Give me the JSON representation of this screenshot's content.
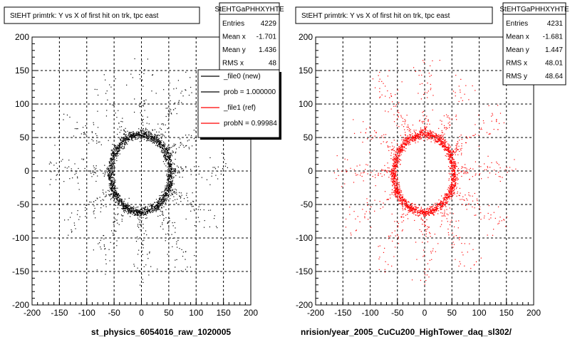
{
  "chart_data": [
    {
      "type": "scatter",
      "title": "StEHT primtrk: Y vs X of first hit on trk, tpc east",
      "xlim": [
        -200,
        200
      ],
      "ylim": [
        -200,
        200
      ],
      "x_ticks": [
        -200,
        -150,
        -100,
        -50,
        0,
        50,
        100,
        150,
        200
      ],
      "y_ticks": [
        -200,
        -150,
        -100,
        -50,
        0,
        50,
        100,
        150,
        200
      ],
      "grid": true,
      "point_color": "#000000",
      "stats": {
        "header": "StEHTGaPHHXYHTE",
        "rows": [
          {
            "label": "Entries",
            "value": "4229"
          },
          {
            "label": "Mean x",
            "value": "-1.701"
          },
          {
            "label": "Mean y",
            "value": "1.436"
          },
          {
            "label": "RMS x",
            "value": "48"
          }
        ]
      },
      "legend": {
        "placement": "top-right",
        "entries": [
          {
            "label": "_file0 (new)",
            "color": "#000000"
          },
          {
            "label": "prob = 1.000000",
            "color": "#000000"
          },
          {
            "label": "_file1 (ref)",
            "color": "#ff0000"
          },
          {
            "label": "probN = 0.99984",
            "color": "#ff0000"
          }
        ]
      },
      "xlabel": "st_physics_6054016_raw_1020005"
    },
    {
      "type": "scatter",
      "title": "StEHT primtrk: Y vs X of first hit on trk, tpc east",
      "xlim": [
        -200,
        200
      ],
      "ylim": [
        -200,
        200
      ],
      "x_ticks": [
        -200,
        -150,
        -100,
        -50,
        0,
        50,
        100,
        150,
        200
      ],
      "y_ticks": [
        -200,
        -150,
        -100,
        -50,
        0,
        50,
        100,
        150,
        200
      ],
      "grid": true,
      "point_color": "#ff0000",
      "stats": {
        "header": "StEHTGaPHHXYHTE",
        "rows": [
          {
            "label": "Entries",
            "value": "4231"
          },
          {
            "label": "Mean x",
            "value": "-1.681"
          },
          {
            "label": "Mean y",
            "value": "1.447"
          },
          {
            "label": "RMS x",
            "value": "48.01"
          },
          {
            "label": "RMS y",
            "value": "48.64"
          }
        ]
      },
      "xlabel": "nrision/year_2005_CuCu200_HighTower_daq_sl302/"
    }
  ]
}
